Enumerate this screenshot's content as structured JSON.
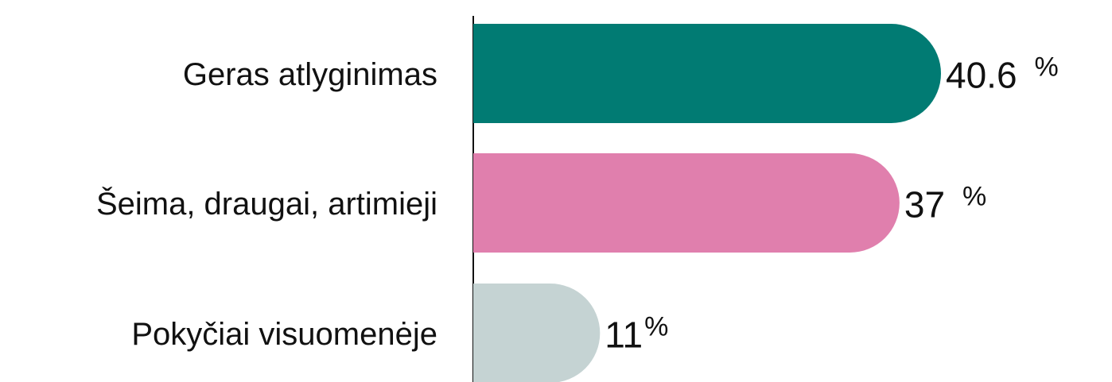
{
  "chart_data": {
    "type": "bar",
    "orientation": "horizontal",
    "categories": [
      "Geras atlyginimas",
      "Šeima, draugai, artimieji",
      "Pokyčiai visuomenėje"
    ],
    "values": [
      40.6,
      37,
      11
    ],
    "colors": [
      "#017b73",
      "#e07fad",
      "#c5d3d3"
    ],
    "unit": "%"
  }
}
